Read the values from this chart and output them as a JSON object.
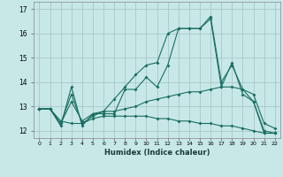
{
  "xlabel": "Humidex (Indice chaleur)",
  "bg_color": "#c8e8e8",
  "grid_color": "#a8c8c8",
  "line_color": "#1a6e60",
  "x_ticks": [
    0,
    1,
    2,
    3,
    4,
    5,
    6,
    7,
    8,
    9,
    10,
    11,
    12,
    13,
    14,
    15,
    16,
    17,
    18,
    19,
    20,
    21,
    22
  ],
  "y_ticks": [
    12,
    13,
    14,
    15,
    16,
    17
  ],
  "ylim": [
    11.7,
    17.3
  ],
  "xlim": [
    -0.5,
    22.5
  ],
  "line1_x": [
    0,
    1,
    2,
    3,
    4,
    5,
    6,
    7,
    8,
    9,
    10,
    11,
    12,
    13,
    14,
    15,
    16,
    17,
    18,
    19,
    20,
    21,
    22
  ],
  "line1_y": [
    12.9,
    12.9,
    12.2,
    13.8,
    12.2,
    12.7,
    12.7,
    12.7,
    13.7,
    13.7,
    14.2,
    13.8,
    14.7,
    16.2,
    16.2,
    16.2,
    16.7,
    14.0,
    14.7,
    13.7,
    13.2,
    11.9,
    11.9
  ],
  "line2_x": [
    0,
    1,
    2,
    3,
    4,
    5,
    6,
    7,
    8,
    9,
    10,
    11,
    12,
    13,
    14,
    15,
    16,
    17,
    18,
    19,
    20,
    21,
    22
  ],
  "line2_y": [
    12.9,
    12.9,
    12.3,
    13.5,
    12.3,
    12.6,
    12.8,
    13.3,
    13.8,
    14.3,
    14.7,
    14.8,
    16.0,
    16.2,
    16.2,
    16.2,
    16.6,
    13.8,
    14.8,
    13.5,
    13.2,
    12.0,
    11.9
  ],
  "line3_x": [
    0,
    1,
    2,
    3,
    4,
    5,
    6,
    7,
    8,
    9,
    10,
    11,
    12,
    13,
    14,
    15,
    16,
    17,
    18,
    19,
    20,
    21,
    22
  ],
  "line3_y": [
    12.9,
    12.9,
    12.3,
    13.2,
    12.4,
    12.7,
    12.8,
    12.8,
    12.9,
    13.0,
    13.2,
    13.3,
    13.4,
    13.5,
    13.6,
    13.6,
    13.7,
    13.8,
    13.8,
    13.7,
    13.5,
    12.3,
    12.1
  ],
  "line4_x": [
    0,
    1,
    2,
    3,
    4,
    5,
    6,
    7,
    8,
    9,
    10,
    11,
    12,
    13,
    14,
    15,
    16,
    17,
    18,
    19,
    20,
    21,
    22
  ],
  "line4_y": [
    12.9,
    12.9,
    12.4,
    12.3,
    12.3,
    12.5,
    12.6,
    12.6,
    12.6,
    12.6,
    12.6,
    12.5,
    12.5,
    12.4,
    12.4,
    12.3,
    12.3,
    12.2,
    12.2,
    12.1,
    12.0,
    11.9,
    11.9
  ]
}
